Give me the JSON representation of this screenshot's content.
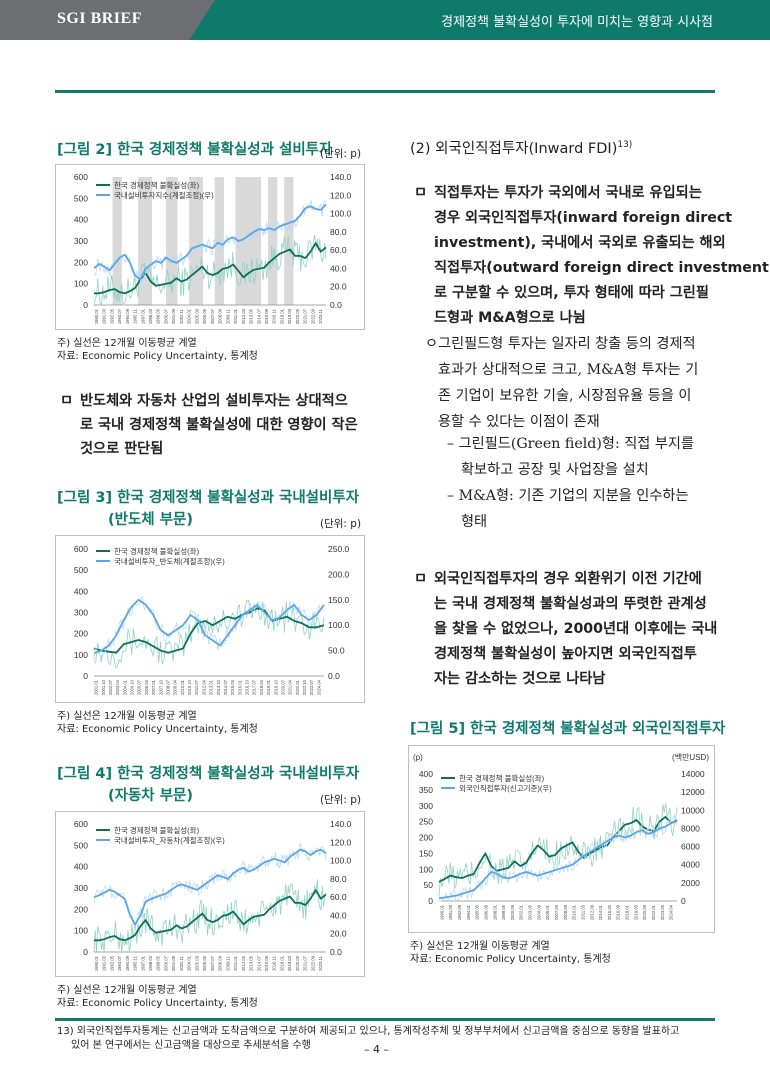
{
  "header": {
    "brand": "SGI BRIEF",
    "title": "경제정책 불확실성이 투자에 미치는 영향과 시사점"
  },
  "fig2": {
    "title": "[그림 2] 한국 경제정책 불확실성과 설비투자",
    "unit": "(단위: p)",
    "note1": "주) 실선은 12개월 이동평균 계열",
    "note2": "자료: Economic Policy Uncertainty, 통계청"
  },
  "fig3": {
    "title_line1": "[그림 3] 한국 경제정책 불확실성과 국내설비투자",
    "title_line2": "(반도체 부문)",
    "unit": "(단위: p)",
    "note1": "주) 실선은 12개월 이동평균 계열",
    "note2": "자료: Economic Policy Uncertainty, 통계청"
  },
  "fig4": {
    "title_line1": "[그림 4] 한국 경제정책 불확실성과 국내설비투자",
    "title_line2": "(자동차 부문)",
    "unit": "(단위: p)",
    "note1": "주) 실선은 12개월 이동평균 계열",
    "note2": "자료: Economic Policy Uncertainty, 통계청"
  },
  "fig5": {
    "title": "[그림 5] 한국 경제정책 불확실성과 외국인직접투자",
    "note1": "주) 실선은 12개월 이동평균 계열",
    "note2": "자료: Economic Policy Uncertainty, 통계청"
  },
  "left_bullet": {
    "box": "ㅁ",
    "line1": "반도체와 자동차 산업의 설비투자는 상대적으",
    "line2": "로 국내 경제정책 불확실성에 대한 영향이 작은",
    "line3": "것으로 판단됨"
  },
  "right": {
    "section_head": "(2) 외국인직접투자(Inward FDI)",
    "section_sup": "13)",
    "b1_box": "ㅁ",
    "b1_lines": [
      "직접투자는 투자가 국외에서 국내로 유입되는",
      "경우 외국인직접투자(inward foreign direct",
      "investment), 국내에서 국외로 유출되는 해외",
      "직접투자(outward foreign direct investment)",
      "로 구분할 수 있으며, 투자 형태에 따라 그린필",
      "드형과 M&A형으로 나뉨"
    ],
    "o_lines": [
      "ㅇ그린필드형 투자는 일자리 창출 등의 경제적",
      "효과가 상대적으로 크고, M&A형 투자는 기",
      "존 기업이 보유한 기술, 시장점유율 등을 이",
      "용할 수 있다는 이점이 존재"
    ],
    "d1_lines": [
      "– 그린필드(Green field)형: 직접 부지를",
      "확보하고 공장 및 사업장을 설치"
    ],
    "d2_lines": [
      "– M&A형: 기존 기업의 지분을 인수하는",
      "형태"
    ],
    "b2_box": "ㅁ",
    "b2_lines": [
      "외국인직접투자의 경우 외환위기 이전 기간에",
      "는 국내 경제정책 불확실성과의 뚜렷한 관계성",
      "을 찾을 수 없었으나, 2000년대 이후에는 국내",
      "경제정책 불확실성이 높아지면 외국인직접투",
      "자는 감소하는 것으로 나타남"
    ]
  },
  "footnote": {
    "line1": "13) 외국인직접투자통계는 신고금액과 도착금액으로 구분하여 제공되고 있으나, 통계작성주체 및 정부부처에서 신고금액을 중심으로 동향을 발표하고",
    "line2": "있어 본 연구에서는 신고금액을 대상으로 추세분석을 수행"
  },
  "page_number": "– 4 –",
  "colors": {
    "brand_green": "#0e7a6c",
    "header_grey": "#6d6e71",
    "epu_line": "#0e6e5e",
    "epu_raw": "#8fd3c0",
    "inv_line": "#5aa6e6",
    "inv_raw": "#bcd9f3",
    "recession_band": "#d9d9d9"
  },
  "chart_data": [
    {
      "id": "fig2",
      "type": "line",
      "legend_position": "top-left",
      "y_left": {
        "range": [
          0,
          600
        ],
        "ticks": [
          "0",
          "100",
          "200",
          "300",
          "400",
          "500",
          "600"
        ]
      },
      "y_right": {
        "range": [
          0,
          140
        ],
        "ticks": [
          "0.0",
          "20.0",
          "40.0",
          "60.0",
          "80.0",
          "100.0",
          "120.0",
          "140.0"
        ]
      },
      "x_ticks": [
        "1990.01",
        "1991.03",
        "1992.05",
        "1993.07",
        "1994.09",
        "1995.11",
        "1997.01",
        "1998.03",
        "1999.05",
        "2000.07",
        "2001.09",
        "2002.11",
        "2004.01",
        "2005.03",
        "2006.05",
        "2007.07",
        "2008.09",
        "2009.11",
        "2011.01",
        "2012.03",
        "2013.05",
        "2014.07",
        "2015.09",
        "2016.11",
        "2018.01",
        "2019.03",
        "2020.05",
        "2021.07",
        "2022.09",
        "2023.11"
      ],
      "shaded_periods": true,
      "series": [
        {
          "name": "한국 경제정책 불확실성(좌)",
          "axis": "left",
          "style": "dark-green",
          "values": [
            55,
            55,
            60,
            70,
            75,
            60,
            55,
            65,
            80,
            120,
            150,
            110,
            90,
            95,
            100,
            105,
            125,
            110,
            120,
            140,
            160,
            180,
            150,
            140,
            150,
            170,
            175,
            190,
            160,
            130,
            150,
            165,
            170,
            175,
            200,
            220,
            240,
            250,
            260,
            230,
            230,
            220,
            250,
            290,
            250,
            270
          ]
        },
        {
          "name": "국내설비투자지수(계절조정)(우)",
          "axis": "right",
          "style": "blue",
          "values": [
            40,
            45,
            42,
            38,
            45,
            52,
            55,
            46,
            32,
            28,
            40,
            44,
            48,
            46,
            52,
            48,
            46,
            50,
            54,
            62,
            64,
            66,
            64,
            62,
            68,
            66,
            72,
            74,
            70,
            72,
            76,
            80,
            83,
            82,
            84,
            82,
            86,
            88,
            90,
            92,
            98,
            106,
            108,
            105,
            104,
            110
          ]
        }
      ]
    },
    {
      "id": "fig3",
      "type": "line",
      "legend_position": "top-left",
      "y_left": {
        "range": [
          0,
          600
        ],
        "ticks": [
          "0",
          "100",
          "200",
          "300",
          "400",
          "500",
          "600"
        ]
      },
      "y_right": {
        "range": [
          0,
          250
        ],
        "ticks": [
          "0.0",
          "50.0",
          "100.0",
          "150.0",
          "200.0",
          "250.0"
        ]
      },
      "x_ticks": [
        "2001.01",
        "2001.10",
        "2002.07",
        "2003.04",
        "2004.01",
        "2004.10",
        "2005.07",
        "2006.04",
        "2007.01",
        "2007.10",
        "2008.07",
        "2009.04",
        "2010.01",
        "2010.10",
        "2011.07",
        "2012.04",
        "2013.01",
        "2013.10",
        "2014.07",
        "2015.04",
        "2016.01",
        "2016.10",
        "2017.07",
        "2018.04",
        "2019.01",
        "2019.10",
        "2020.07",
        "2021.04",
        "2022.01",
        "2022.10",
        "2023.07",
        "2024.04"
      ],
      "series": [
        {
          "name": "한국 경제정책 불확실성(좌)",
          "axis": "left",
          "style": "dark-green",
          "values": [
            130,
            120,
            115,
            110,
            150,
            160,
            170,
            160,
            140,
            120,
            110,
            120,
            130,
            200,
            250,
            260,
            240,
            260,
            280,
            270,
            290,
            300,
            320,
            310,
            260,
            270,
            280,
            260,
            250,
            230,
            230,
            240
          ]
        },
        {
          "name": "국내설비투자_반도체(계절조정)(우)",
          "axis": "right",
          "style": "blue",
          "values": [
            45,
            50,
            60,
            80,
            110,
            135,
            150,
            140,
            120,
            90,
            80,
            90,
            100,
            120,
            110,
            80,
            70,
            60,
            80,
            100,
            120,
            130,
            140,
            125,
            110,
            115,
            130,
            140,
            120,
            110,
            120,
            140
          ]
        }
      ]
    },
    {
      "id": "fig4",
      "type": "line",
      "legend_position": "top-left",
      "y_left": {
        "range": [
          0,
          600
        ],
        "ticks": [
          "0",
          "100",
          "200",
          "300",
          "400",
          "500",
          "600"
        ]
      },
      "y_right": {
        "range": [
          0,
          140
        ],
        "ticks": [
          "0.0",
          "20.0",
          "40.0",
          "60.0",
          "80.0",
          "100.0",
          "120.0",
          "140.0"
        ]
      },
      "x_ticks": [
        "1990.01",
        "1991.03",
        "1992.05",
        "1993.07",
        "1994.09",
        "1995.11",
        "1997.01",
        "1998.03",
        "1999.05",
        "2000.07",
        "2001.09",
        "2002.11",
        "2004.01",
        "2005.03",
        "2006.05",
        "2007.07",
        "2008.09",
        "2009.11",
        "2011.01",
        "2012.03",
        "2013.05",
        "2014.07",
        "2015.09",
        "2016.11",
        "2018.01",
        "2019.03",
        "2020.05",
        "2021.07",
        "2022.09",
        "2023.11"
      ],
      "series": [
        {
          "name": "한국 경제정책 불확실성(좌)",
          "axis": "left",
          "style": "dark-green",
          "values": [
            55,
            55,
            60,
            70,
            75,
            60,
            55,
            65,
            80,
            120,
            150,
            110,
            90,
            95,
            100,
            105,
            125,
            110,
            120,
            140,
            160,
            180,
            150,
            140,
            150,
            170,
            175,
            190,
            160,
            130,
            150,
            165,
            170,
            175,
            200,
            220,
            240,
            250,
            260,
            230,
            230,
            220,
            250,
            290,
            250,
            270
          ]
        },
        {
          "name": "국내설비투자_자동차(계절조정)(우)",
          "axis": "right",
          "style": "blue",
          "values": [
            60,
            62,
            65,
            68,
            66,
            62,
            58,
            40,
            30,
            40,
            55,
            58,
            60,
            62,
            64,
            68,
            72,
            74,
            72,
            70,
            68,
            72,
            76,
            80,
            84,
            82,
            80,
            86,
            90,
            92,
            88,
            90,
            94,
            98,
            100,
            102,
            100,
            98,
            104,
            108,
            112,
            110,
            106,
            110,
            112,
            108
          ]
        }
      ]
    },
    {
      "id": "fig5",
      "type": "line",
      "legend_position": "top-left",
      "y_left": {
        "label": "(p)",
        "range": [
          0,
          400
        ],
        "ticks": [
          "0",
          "50",
          "100",
          "150",
          "200",
          "250",
          "300",
          "350",
          "400"
        ]
      },
      "y_right": {
        "label": "(백만USD)",
        "range": [
          0,
          14000
        ],
        "ticks": [
          "0",
          "2000",
          "4000",
          "6000",
          "8000",
          "10000",
          "12000",
          "14000"
        ]
      },
      "x_ticks": [
        "1990.01",
        "1991.05",
        "1992.09",
        "1994.01",
        "1995.05",
        "1996.09",
        "1998.01",
        "1999.05",
        "2000.09",
        "2002.01",
        "2003.05",
        "2004.09",
        "2006.01",
        "2007.05",
        "2008.09",
        "2010.01",
        "2011.05",
        "2012.09",
        "2014.01",
        "2015.05",
        "2016.09",
        "2018.01",
        "2019.05",
        "2020.09",
        "2022.01",
        "2023.05",
        "2024.04"
      ],
      "series": [
        {
          "name": "한국 경제정책 불확실성(좌)",
          "axis": "left",
          "style": "dark-green",
          "values": [
            60,
            70,
            80,
            75,
            72,
            80,
            85,
            120,
            150,
            110,
            95,
            100,
            105,
            125,
            110,
            120,
            150,
            175,
            160,
            140,
            145,
            165,
            175,
            185,
            155,
            135,
            150,
            160,
            170,
            175,
            200,
            220,
            240,
            245,
            255,
            235,
            225,
            220,
            250,
            265,
            245,
            255
          ]
        },
        {
          "name": "외국인직접투자(신고기준)(우)",
          "axis": "right",
          "style": "blue",
          "values": [
            300,
            400,
            500,
            600,
            800,
            1000,
            1200,
            1800,
            2500,
            3200,
            3000,
            2600,
            2500,
            2700,
            3000,
            3200,
            3000,
            2800,
            3000,
            3200,
            3400,
            3600,
            3800,
            4000,
            4500,
            5000,
            5400,
            5800,
            6200,
            6600,
            7000,
            7200,
            7000,
            7200,
            7600,
            7800,
            7400,
            7600,
            8000,
            8200,
            8600,
            8800
          ]
        }
      ]
    }
  ]
}
